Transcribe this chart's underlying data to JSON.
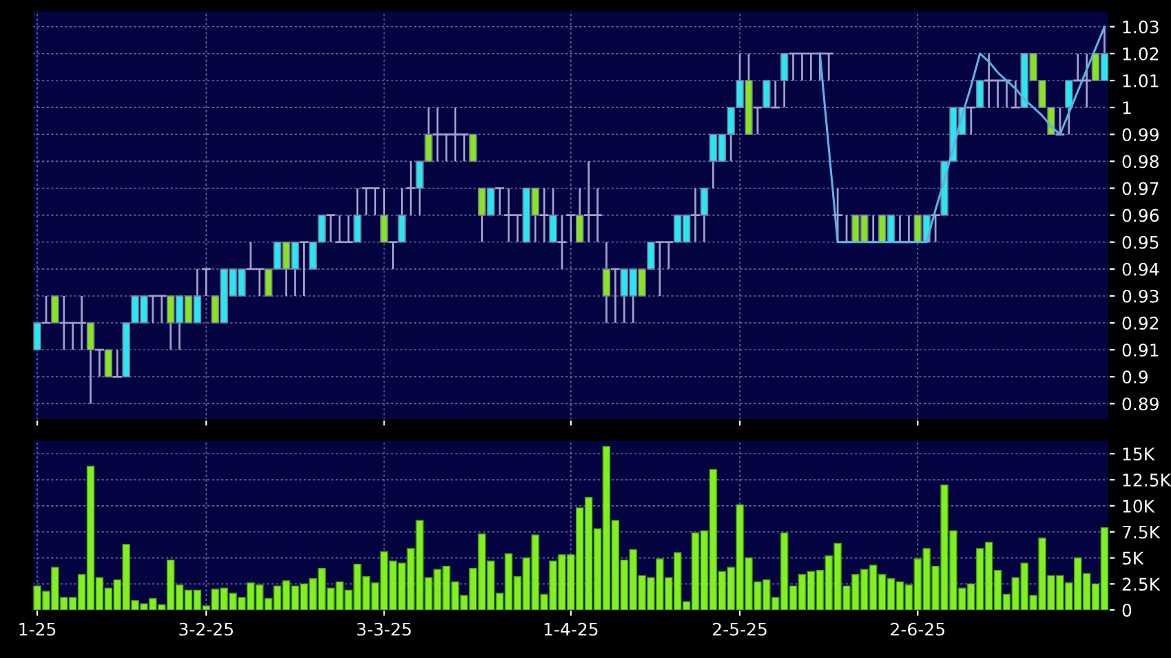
{
  "chart_data": [
    {
      "type": "candlestick",
      "grid": true,
      "tick_labels": "y",
      "categories": [
        null,
        null,
        null,
        null,
        null,
        null,
        null,
        null,
        null,
        null,
        null,
        null,
        null,
        null,
        null,
        null,
        null,
        null,
        null,
        null,
        null,
        null,
        null,
        null,
        null,
        null,
        null,
        null,
        null,
        null,
        null,
        null,
        null,
        null,
        null,
        null,
        null,
        null,
        null,
        null,
        null,
        null,
        null,
        null,
        null,
        null,
        null,
        null,
        null,
        null,
        null,
        null,
        null,
        null,
        null,
        null,
        null,
        null,
        null,
        null,
        null,
        null,
        null,
        null,
        null,
        null,
        null,
        null,
        null,
        null,
        null,
        null,
        null,
        null,
        null,
        null,
        null,
        null,
        null,
        null,
        null,
        null,
        null,
        null,
        null,
        null,
        null,
        null,
        null,
        null,
        null,
        null,
        null,
        null,
        null,
        null,
        null,
        null,
        null,
        null,
        null,
        null,
        null,
        null,
        null,
        null,
        null,
        null,
        null,
        null,
        null,
        null,
        null,
        null,
        null,
        null,
        null,
        null,
        null,
        null,
        null
      ],
      "ohlc": [
        [
          0.91,
          0.92,
          0.91,
          0.92
        ],
        [
          0.92,
          0.93,
          0.92,
          0.92
        ],
        [
          0.93,
          0.93,
          0.92,
          0.92
        ],
        [
          0.92,
          0.93,
          0.91,
          0.92
        ],
        [
          0.92,
          0.92,
          0.91,
          0.92
        ],
        [
          0.92,
          0.93,
          0.91,
          0.92
        ],
        [
          0.92,
          0.92,
          0.89,
          0.91
        ],
        [
          0.91,
          0.91,
          0.9,
          0.91
        ],
        [
          0.91,
          0.91,
          0.9,
          0.9
        ],
        [
          0.9,
          0.91,
          0.9,
          0.9
        ],
        [
          0.9,
          0.92,
          0.9,
          0.92
        ],
        [
          0.92,
          0.93,
          0.92,
          0.93
        ],
        [
          0.92,
          0.93,
          0.92,
          0.93
        ],
        [
          0.93,
          0.93,
          0.92,
          0.93
        ],
        [
          0.93,
          0.93,
          0.92,
          0.93
        ],
        [
          0.93,
          0.93,
          0.91,
          0.92
        ],
        [
          0.92,
          0.93,
          0.91,
          0.93
        ],
        [
          0.93,
          0.93,
          0.92,
          0.92
        ],
        [
          0.92,
          0.94,
          0.92,
          0.93
        ],
        [
          0.94,
          0.94,
          0.93,
          0.94
        ],
        [
          0.93,
          0.93,
          0.92,
          0.92
        ],
        [
          0.92,
          0.94,
          0.92,
          0.94
        ],
        [
          0.93,
          0.94,
          0.93,
          0.94
        ],
        [
          0.93,
          0.94,
          0.93,
          0.94
        ],
        [
          0.94,
          0.95,
          0.94,
          0.94
        ],
        [
          0.94,
          0.94,
          0.93,
          0.94
        ],
        [
          0.94,
          0.94,
          0.93,
          0.93
        ],
        [
          0.94,
          0.95,
          0.94,
          0.95
        ],
        [
          0.95,
          0.95,
          0.93,
          0.94
        ],
        [
          0.94,
          0.95,
          0.93,
          0.95
        ],
        [
          0.95,
          0.95,
          0.93,
          0.95
        ],
        [
          0.94,
          0.95,
          0.94,
          0.95
        ],
        [
          0.95,
          0.96,
          0.95,
          0.96
        ],
        [
          0.96,
          0.96,
          0.95,
          0.96
        ],
        [
          0.95,
          0.96,
          0.95,
          0.95
        ],
        [
          0.95,
          0.96,
          0.95,
          0.95
        ],
        [
          0.95,
          0.97,
          0.95,
          0.96
        ],
        [
          0.97,
          0.97,
          0.96,
          0.97
        ],
        [
          0.97,
          0.97,
          0.96,
          0.97
        ],
        [
          0.96,
          0.97,
          0.95,
          0.95
        ],
        [
          0.95,
          0.95,
          0.94,
          0.95
        ],
        [
          0.95,
          0.97,
          0.95,
          0.96
        ],
        [
          0.97,
          0.98,
          0.96,
          0.97
        ],
        [
          0.97,
          0.98,
          0.96,
          0.98
        ],
        [
          0.99,
          1.0,
          0.98,
          0.98
        ],
        [
          0.99,
          1.0,
          0.98,
          0.99
        ],
        [
          0.99,
          0.99,
          0.98,
          0.99
        ],
        [
          0.99,
          1.0,
          0.98,
          0.99
        ],
        [
          0.99,
          0.99,
          0.98,
          0.99
        ],
        [
          0.99,
          0.99,
          0.98,
          0.98
        ],
        [
          0.97,
          0.97,
          0.95,
          0.96
        ],
        [
          0.96,
          0.97,
          0.96,
          0.97
        ],
        [
          0.97,
          0.97,
          0.96,
          0.97
        ],
        [
          0.96,
          0.97,
          0.95,
          0.96
        ],
        [
          0.96,
          0.96,
          0.95,
          0.96
        ],
        [
          0.95,
          0.97,
          0.95,
          0.97
        ],
        [
          0.97,
          0.97,
          0.95,
          0.96
        ],
        [
          0.96,
          0.97,
          0.95,
          0.96
        ],
        [
          0.95,
          0.97,
          0.95,
          0.96
        ],
        [
          0.95,
          0.96,
          0.94,
          0.95
        ],
        [
          0.96,
          0.96,
          0.95,
          0.96
        ],
        [
          0.96,
          0.97,
          0.95,
          0.95
        ],
        [
          0.96,
          0.98,
          0.95,
          0.96
        ],
        [
          0.96,
          0.97,
          0.95,
          0.96
        ],
        [
          0.94,
          0.95,
          0.92,
          0.93
        ],
        [
          0.94,
          0.94,
          0.92,
          0.94
        ],
        [
          0.93,
          0.94,
          0.92,
          0.94
        ],
        [
          0.93,
          0.94,
          0.92,
          0.94
        ],
        [
          0.94,
          0.94,
          0.93,
          0.93
        ],
        [
          0.94,
          0.95,
          0.94,
          0.95
        ],
        [
          0.95,
          0.95,
          0.93,
          0.95
        ],
        [
          0.95,
          0.95,
          0.94,
          0.95
        ],
        [
          0.95,
          0.96,
          0.95,
          0.96
        ],
        [
          0.95,
          0.96,
          0.95,
          0.96
        ],
        [
          0.96,
          0.97,
          0.95,
          0.96
        ],
        [
          0.96,
          0.97,
          0.95,
          0.97
        ],
        [
          0.98,
          0.99,
          0.97,
          0.99
        ],
        [
          0.98,
          0.99,
          0.98,
          0.99
        ],
        [
          0.99,
          1.0,
          0.98,
          1.0
        ],
        [
          1.0,
          1.02,
          1.0,
          1.01
        ],
        [
          1.01,
          1.02,
          0.99,
          0.99
        ],
        [
          1.0,
          1.0,
          0.99,
          1.0
        ],
        [
          1.0,
          1.01,
          1.0,
          1.01
        ],
        [
          1.0,
          1.01,
          1.0,
          1.0
        ],
        [
          1.01,
          1.02,
          1.0,
          1.02
        ],
        [
          1.02,
          1.02,
          1.01,
          1.02
        ],
        [
          1.02,
          1.02,
          1.01,
          1.02
        ],
        [
          1.02,
          1.02,
          1.01,
          1.02
        ],
        [
          1.02,
          1.02,
          1.01,
          1.02
        ],
        [
          1.02,
          1.02,
          1.01,
          1.02
        ],
        [
          0.96,
          0.97,
          0.95,
          0.96
        ],
        [
          0.95,
          0.96,
          0.95,
          0.95
        ],
        [
          0.96,
          0.96,
          0.95,
          0.95
        ],
        [
          0.96,
          0.96,
          0.95,
          0.95
        ],
        [
          0.95,
          0.96,
          0.95,
          0.95
        ],
        [
          0.96,
          0.96,
          0.95,
          0.95
        ],
        [
          0.95,
          0.96,
          0.95,
          0.96
        ],
        [
          0.95,
          0.96,
          0.95,
          0.95
        ],
        [
          0.95,
          0.96,
          0.95,
          0.95
        ],
        [
          0.96,
          0.96,
          0.95,
          0.95
        ],
        [
          0.95,
          0.96,
          0.95,
          0.96
        ],
        [
          0.96,
          0.96,
          0.95,
          0.96
        ],
        [
          0.96,
          0.98,
          0.96,
          0.98
        ],
        [
          0.98,
          1.0,
          0.98,
          1.0
        ],
        [
          0.99,
          1.0,
          0.99,
          1.0
        ],
        [
          1.0,
          1.0,
          0.99,
          1.0
        ],
        [
          1.0,
          1.01,
          1.0,
          1.01
        ],
        [
          1.01,
          1.02,
          1.0,
          1.01
        ],
        [
          1.01,
          1.01,
          1.0,
          1.01
        ],
        [
          1.01,
          1.01,
          1.0,
          1.01
        ],
        [
          1.0,
          1.01,
          1.0,
          1.0
        ],
        [
          1.0,
          1.02,
          1.0,
          1.02
        ],
        [
          1.02,
          1.02,
          1.01,
          1.01
        ],
        [
          1.01,
          1.01,
          1.0,
          1.0
        ],
        [
          1.0,
          1.0,
          0.99,
          0.99
        ],
        [
          0.99,
          1.0,
          0.99,
          0.99
        ],
        [
          1.0,
          1.01,
          0.99,
          1.01
        ],
        [
          1.01,
          1.02,
          1.01,
          1.01
        ],
        [
          1.01,
          1.02,
          1.0,
          1.01
        ],
        [
          1.02,
          1.02,
          1.01,
          1.01
        ],
        [
          1.01,
          1.03,
          1.01,
          1.02
        ]
      ],
      "colors": [
        "#26e8f2",
        "#a0a0c8",
        "#86e61c",
        "#a0a0c8",
        "#a0a0c8",
        "#a0a0c8",
        "#86e61c",
        "#a0a0c8",
        "#86e61c",
        "#a0a0c8",
        "#26e8f2",
        "#26e8f2",
        "#26e8f2",
        "#a0a0c8",
        "#a0a0c8",
        "#86e61c",
        "#26e8f2",
        "#86e61c",
        "#26e8f2",
        "#a0a0c8",
        "#86e61c",
        "#26e8f2",
        "#26e8f2",
        "#26e8f2",
        "#a0a0c8",
        "#a0a0c8",
        "#86e61c",
        "#26e8f2",
        "#86e61c",
        "#26e8f2",
        "#a0a0c8",
        "#26e8f2",
        "#26e8f2",
        "#a0a0c8",
        "#a0a0c8",
        "#a0a0c8",
        "#26e8f2",
        "#a0a0c8",
        "#a0a0c8",
        "#86e61c",
        "#a0a0c8",
        "#26e8f2",
        "#a0a0c8",
        "#26e8f2",
        "#86e61c",
        "#a0a0c8",
        "#a0a0c8",
        "#a0a0c8",
        "#a0a0c8",
        "#86e61c",
        "#86e61c",
        "#26e8f2",
        "#a0a0c8",
        "#a0a0c8",
        "#a0a0c8",
        "#26e8f2",
        "#86e61c",
        "#a0a0c8",
        "#26e8f2",
        "#a0a0c8",
        "#a0a0c8",
        "#86e61c",
        "#a0a0c8",
        "#a0a0c8",
        "#86e61c",
        "#a0a0c8",
        "#26e8f2",
        "#26e8f2",
        "#86e61c",
        "#26e8f2",
        "#a0a0c8",
        "#a0a0c8",
        "#26e8f2",
        "#26e8f2",
        "#a0a0c8",
        "#26e8f2",
        "#26e8f2",
        "#26e8f2",
        "#26e8f2",
        "#26e8f2",
        "#86e61c",
        "#a0a0c8",
        "#26e8f2",
        "#a0a0c8",
        "#26e8f2",
        "#a0a0c8",
        "#a0a0c8",
        "#a0a0c8",
        "#a0a0c8",
        "#a0a0c8",
        "#a0a0c8",
        "#a0a0c8",
        "#86e61c",
        "#86e61c",
        "#a0a0c8",
        "#86e61c",
        "#26e8f2",
        "#a0a0c8",
        "#a0a0c8",
        "#86e61c",
        "#26e8f2",
        "#a0a0c8",
        "#26e8f2",
        "#26e8f2",
        "#26e8f2",
        "#a0a0c8",
        "#26e8f2",
        "#a0a0c8",
        "#a0a0c8",
        "#a0a0c8",
        "#a0a0c8",
        "#26e8f2",
        "#86e61c",
        "#86e61c",
        "#86e61c",
        "#a0a0c8",
        "#26e8f2",
        "#a0a0c8",
        "#a0a0c8",
        "#86e61c",
        "#26e8f2"
      ],
      "series": [
        {
          "type": "line",
          "color": "#5ab4e6",
          "values": [
            null,
            null,
            null,
            null,
            null,
            null,
            null,
            null,
            null,
            null,
            null,
            null,
            null,
            null,
            null,
            null,
            null,
            null,
            null,
            null,
            null,
            null,
            null,
            null,
            null,
            null,
            null,
            null,
            null,
            null,
            null,
            null,
            null,
            null,
            null,
            null,
            null,
            null,
            null,
            null,
            null,
            null,
            null,
            null,
            null,
            null,
            null,
            null,
            null,
            null,
            null,
            null,
            null,
            null,
            null,
            null,
            null,
            null,
            null,
            null,
            null,
            null,
            null,
            null,
            null,
            null,
            null,
            null,
            null,
            null,
            null,
            null,
            null,
            null,
            null,
            null,
            null,
            null,
            null,
            null,
            null,
            null,
            null,
            null,
            null,
            null,
            null,
            null,
            1.02,
            0.985,
            0.95,
            0.95,
            0.95,
            0.95,
            0.95,
            0.95,
            0.95,
            0.95,
            0.95,
            0.95,
            0.95,
            0.962,
            0.973,
            0.985,
            0.997,
            1.008,
            1.02,
            1.017,
            1.013,
            1.01,
            1.007,
            1.003,
            1.0,
            0.997,
            0.993,
            0.99,
            0.998,
            1.006,
            1.014,
            1.022,
            1.03
          ]
        }
      ],
      "ylim": [
        0.884,
        1.036
      ],
      "yticks": [
        0.89,
        0.9,
        0.91,
        0.92,
        0.93,
        0.94,
        0.95,
        0.96,
        0.97,
        0.98,
        0.99,
        1,
        1.01,
        1.02,
        1.03
      ]
    },
    {
      "type": "bar",
      "grid": true,
      "color": "#80f020",
      "categories": [
        "1-25",
        null,
        null,
        null,
        null,
        null,
        null,
        null,
        null,
        null,
        null,
        null,
        null,
        null,
        null,
        null,
        null,
        null,
        null,
        "3-2-25",
        null,
        null,
        null,
        null,
        null,
        null,
        null,
        null,
        null,
        null,
        null,
        null,
        null,
        null,
        null,
        null,
        null,
        null,
        null,
        "3-3-25",
        null,
        null,
        null,
        null,
        null,
        null,
        null,
        null,
        null,
        null,
        null,
        null,
        null,
        null,
        null,
        null,
        null,
        null,
        null,
        null,
        "1-4-25",
        null,
        null,
        null,
        null,
        null,
        null,
        null,
        null,
        null,
        null,
        null,
        null,
        null,
        null,
        null,
        null,
        null,
        null,
        "2-5-25",
        null,
        null,
        null,
        null,
        null,
        null,
        null,
        null,
        null,
        null,
        null,
        null,
        null,
        null,
        null,
        null,
        null,
        null,
        null,
        "2-6-25",
        null,
        null,
        null,
        null,
        null,
        null,
        null,
        null,
        null,
        null,
        null,
        null,
        null,
        null,
        null,
        null,
        null,
        null,
        null,
        null,
        null
      ],
      "values": [
        2300,
        1800,
        4100,
        1200,
        1200,
        3400,
        13800,
        3100,
        2100,
        2900,
        6300,
        900,
        600,
        1100,
        500,
        4800,
        2400,
        1900,
        1900,
        400,
        2000,
        2100,
        1600,
        1200,
        2600,
        2400,
        1100,
        2300,
        2800,
        2300,
        2500,
        3000,
        4000,
        2100,
        2700,
        1900,
        4400,
        3200,
        2600,
        5600,
        4700,
        4500,
        5900,
        8600,
        3100,
        3900,
        4200,
        2700,
        1400,
        4000,
        7300,
        4700,
        1600,
        5400,
        3200,
        5000,
        7200,
        1500,
        4700,
        5300,
        5300,
        9800,
        10800,
        7800,
        15700,
        8600,
        4800,
        5800,
        3300,
        3100,
        4900,
        3100,
        5500,
        800,
        7400,
        7600,
        13500,
        3700,
        4100,
        10100,
        5000,
        2700,
        2900,
        1200,
        7400,
        2300,
        3400,
        3700,
        3800,
        5200,
        6400,
        2300,
        3400,
        3900,
        4300,
        3400,
        3000,
        2700,
        2400,
        4900,
        5900,
        4200,
        12000,
        7600,
        2100,
        2500,
        5900,
        6500,
        3800,
        1500,
        3100,
        4500,
        1400,
        6900,
        3300,
        3300,
        2600,
        5000,
        3500,
        2500,
        7900
      ],
      "ylim": [
        0,
        16300
      ],
      "yticks": [
        0,
        {
          "value": 2500,
          "label": "2.5K"
        },
        {
          "value": 5000,
          "label": "5K"
        },
        {
          "value": 7500,
          "label": "7.5K"
        },
        {
          "value": 10000,
          "label": "10K"
        },
        {
          "value": 12500,
          "label": "12.5K"
        },
        {
          "value": 15000,
          "label": "15K"
        }
      ]
    }
  ]
}
